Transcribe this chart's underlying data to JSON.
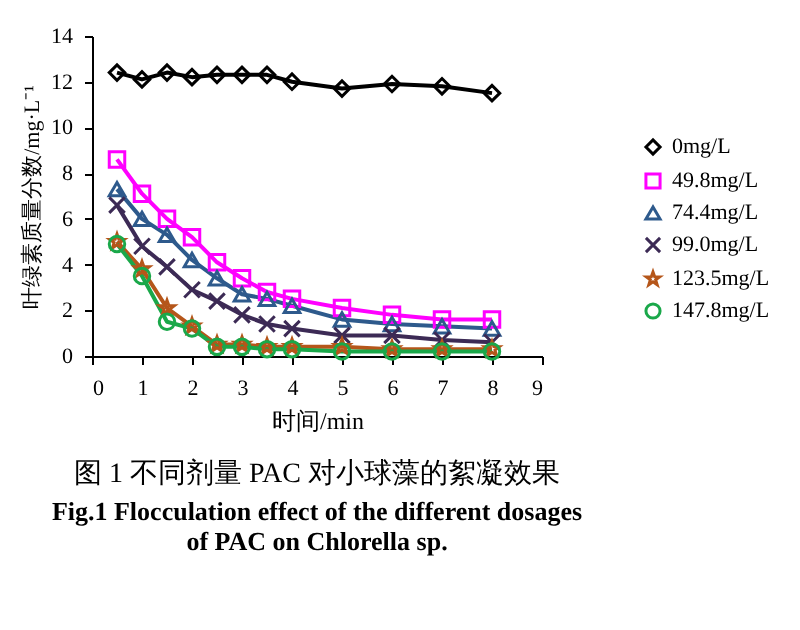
{
  "chart_data": {
    "type": "line",
    "title": "图 1  不同剂量 PAC 对小球藻的絮凝效果",
    "annotations": [
      "Fig.1 Flocculation effect of the different dosages",
      "of PAC on Chlorella sp."
    ],
    "xlabel": "时间/min",
    "ylabel": "叶绿素质量分数/mg·L⁻¹",
    "x": [
      0.5,
      1,
      1.5,
      2,
      2.5,
      3,
      3.5,
      4,
      5,
      6,
      7,
      8
    ],
    "xlim": [
      0,
      9
    ],
    "xticks": [
      0,
      1,
      2,
      3,
      4,
      5,
      6,
      7,
      8,
      9
    ],
    "ylim": [
      0,
      14
    ],
    "yticks": [
      0,
      2,
      4,
      6,
      8,
      10,
      12,
      14
    ],
    "grid": false,
    "legend": "right",
    "line_style": "solid",
    "series": [
      {
        "name": "0mg/L",
        "color": "#000000",
        "marker": "diamond",
        "values": [
          12.4,
          12.1,
          12.4,
          12.2,
          12.3,
          12.3,
          12.3,
          12.0,
          11.7,
          11.9,
          11.8,
          11.5
        ]
      },
      {
        "name": "49.8mg/L",
        "color": "#ff00ff",
        "marker": "square",
        "values": [
          8.6,
          7.1,
          6.0,
          5.2,
          4.1,
          3.4,
          2.8,
          2.5,
          2.1,
          1.8,
          1.6,
          1.6
        ]
      },
      {
        "name": "74.4mg/L",
        "color": "#2e5a8c",
        "marker": "triangle",
        "values": [
          7.3,
          6.0,
          5.3,
          4.2,
          3.4,
          2.7,
          2.5,
          2.2,
          1.6,
          1.4,
          1.3,
          1.2
        ]
      },
      {
        "name": "99.0mg/L",
        "color": "#3c2a55",
        "marker": "cross",
        "values": [
          6.6,
          4.8,
          3.9,
          2.9,
          2.4,
          1.8,
          1.4,
          1.2,
          0.9,
          0.9,
          0.7,
          0.6
        ]
      },
      {
        "name": "123.5mg/L",
        "color": "#b5561a",
        "marker": "star",
        "values": [
          5.0,
          3.8,
          2.1,
          1.3,
          0.5,
          0.5,
          0.4,
          0.4,
          0.4,
          0.3,
          0.3,
          0.3
        ]
      },
      {
        "name": "147.8mg/L",
        "color": "#1aa84a",
        "marker": "circle",
        "values": [
          4.9,
          3.5,
          1.5,
          1.2,
          0.4,
          0.4,
          0.3,
          0.3,
          0.2,
          0.2,
          0.2,
          0.2
        ]
      }
    ]
  }
}
